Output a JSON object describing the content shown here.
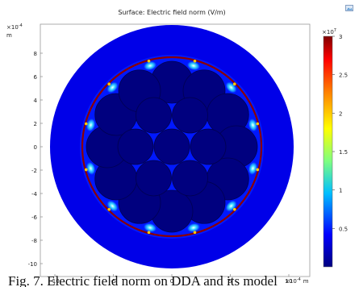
{
  "plot": {
    "title": "Surface: Electric field norm (V/m)",
    "y_exponent_label": "×10",
    "y_exponent_power": "-4",
    "y_unit": "m",
    "x_exponent_label": "×10",
    "x_exponent_power": "-4",
    "x_unit": "m",
    "x_ticks": [
      "-10",
      "-5",
      "0",
      "5",
      "10"
    ],
    "y_ticks": [
      "8",
      "6",
      "4",
      "2",
      "0",
      "-2",
      "-4",
      "-6",
      "-8",
      "-10"
    ]
  },
  "colorbar": {
    "exponent_label": "×10",
    "exponent_power": "7",
    "ticks": [
      "3",
      "2.5",
      "2",
      "1.5",
      "1",
      "0.5"
    ],
    "colors": [
      "#00007f",
      "#0000ff",
      "#00bfff",
      "#7fff7f",
      "#ffff00",
      "#ff7f00",
      "#ff0000",
      "#7f0000"
    ]
  },
  "toolbar": {
    "icon": "image-export-icon"
  },
  "caption": {
    "text": "Fig. 7. Electric field norm on DDA and its model"
  }
}
